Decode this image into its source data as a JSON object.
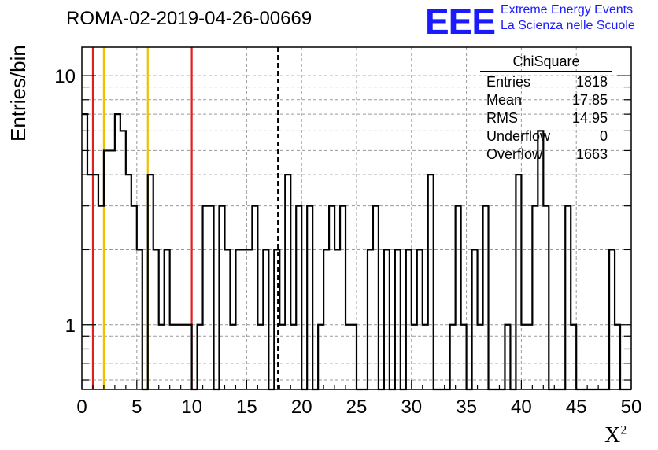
{
  "header": {
    "title": "ROMA-02-2019-04-26-00669",
    "logo_text": "EEE",
    "logo_line1": "Extreme Energy Events",
    "logo_line2": "La Scienza nelle Scuole"
  },
  "stats_box": {
    "title": "ChiSquare",
    "rows": [
      {
        "label": "Entries",
        "value": "1818"
      },
      {
        "label": "Mean",
        "value": "17.85"
      },
      {
        "label": "RMS",
        "value": "14.95"
      },
      {
        "label": "Underflow",
        "value": "0"
      },
      {
        "label": "Overflow",
        "value": "1663"
      }
    ]
  },
  "colors": {
    "histogram": "#000000",
    "red_lines": "#e02020",
    "yellow_lines": "#f0c000",
    "mean_line": "#000000",
    "grid": "#999999",
    "logo": "#1a1aff"
  },
  "chart_data": {
    "type": "histogram",
    "xlabel": "X",
    "xlabel_superscript": "2",
    "ylabel": "Entries/bin",
    "x_range": [
      0,
      50
    ],
    "y_range": [
      0.55,
      13
    ],
    "y_scale": "log",
    "x_ticks": [
      0,
      5,
      10,
      15,
      20,
      25,
      30,
      35,
      40,
      45,
      50
    ],
    "y_tick_labels": [
      {
        "value": 1,
        "label": "1"
      },
      {
        "value": 10,
        "label": "10"
      }
    ],
    "grid": true,
    "bin_width": 0.5,
    "bins": [
      [
        0,
        7
      ],
      [
        0.5,
        4
      ],
      [
        1,
        4
      ],
      [
        1.5,
        3
      ],
      [
        2,
        5
      ],
      [
        2.5,
        5
      ],
      [
        3,
        7
      ],
      [
        3.5,
        6
      ],
      [
        4,
        4
      ],
      [
        4.5,
        3
      ],
      [
        5,
        2
      ],
      [
        5.5,
        0
      ],
      [
        6,
        4
      ],
      [
        6.5,
        2
      ],
      [
        7,
        1
      ],
      [
        7.5,
        2
      ],
      [
        8,
        1
      ],
      [
        8.5,
        1
      ],
      [
        9,
        1
      ],
      [
        9.5,
        1
      ],
      [
        10,
        0
      ],
      [
        10.5,
        1
      ],
      [
        11,
        3
      ],
      [
        11.5,
        3
      ],
      [
        12,
        0
      ],
      [
        12.5,
        3
      ],
      [
        13,
        2
      ],
      [
        13.5,
        1
      ],
      [
        14,
        2
      ],
      [
        14.5,
        2
      ],
      [
        15,
        2
      ],
      [
        15.5,
        3
      ],
      [
        16,
        1
      ],
      [
        16.5,
        2
      ],
      [
        17,
        0
      ],
      [
        17.5,
        2
      ],
      [
        18,
        1
      ],
      [
        18.5,
        4
      ],
      [
        19,
        1
      ],
      [
        19.5,
        3
      ],
      [
        20,
        0
      ],
      [
        20.5,
        3
      ],
      [
        21,
        0
      ],
      [
        21.5,
        1
      ],
      [
        22,
        2
      ],
      [
        22.5,
        3
      ],
      [
        23,
        2
      ],
      [
        23.5,
        3
      ],
      [
        24,
        1
      ],
      [
        24.5,
        1
      ],
      [
        25,
        0
      ],
      [
        25.5,
        0
      ],
      [
        26,
        2
      ],
      [
        26.5,
        3
      ],
      [
        27,
        0
      ],
      [
        27.5,
        2
      ],
      [
        28,
        0
      ],
      [
        28.5,
        2
      ],
      [
        29,
        0
      ],
      [
        29.5,
        2
      ],
      [
        30,
        1
      ],
      [
        30.5,
        2
      ],
      [
        31,
        1
      ],
      [
        31.5,
        4
      ],
      [
        32,
        0
      ],
      [
        32.5,
        0
      ],
      [
        33,
        0
      ],
      [
        33.5,
        1
      ],
      [
        34,
        3
      ],
      [
        34.5,
        1
      ],
      [
        35,
        0
      ],
      [
        35.5,
        2
      ],
      [
        36,
        1
      ],
      [
        36.5,
        3
      ],
      [
        37,
        0
      ],
      [
        37.5,
        0
      ],
      [
        38,
        0
      ],
      [
        38.5,
        1
      ],
      [
        39,
        0
      ],
      [
        39.5,
        4
      ],
      [
        40,
        1
      ],
      [
        40.5,
        1
      ],
      [
        41,
        3
      ],
      [
        41.5,
        6
      ],
      [
        42,
        3
      ],
      [
        42.5,
        0
      ],
      [
        43,
        0
      ],
      [
        43.5,
        0
      ],
      [
        44,
        3
      ],
      [
        44.5,
        1
      ],
      [
        45,
        0
      ],
      [
        45.5,
        0
      ],
      [
        46,
        0
      ],
      [
        46.5,
        0
      ],
      [
        47,
        0
      ],
      [
        47.5,
        0
      ],
      [
        48,
        2
      ],
      [
        48.5,
        1
      ],
      [
        49,
        0
      ],
      [
        49.5,
        0
      ]
    ],
    "vertical_lines": [
      {
        "x": 1,
        "color": "red"
      },
      {
        "x": 2,
        "color": "yellow"
      },
      {
        "x": 6,
        "color": "yellow"
      },
      {
        "x": 10,
        "color": "red"
      },
      {
        "x": 17.85,
        "color": "black",
        "style": "dashed"
      }
    ]
  }
}
